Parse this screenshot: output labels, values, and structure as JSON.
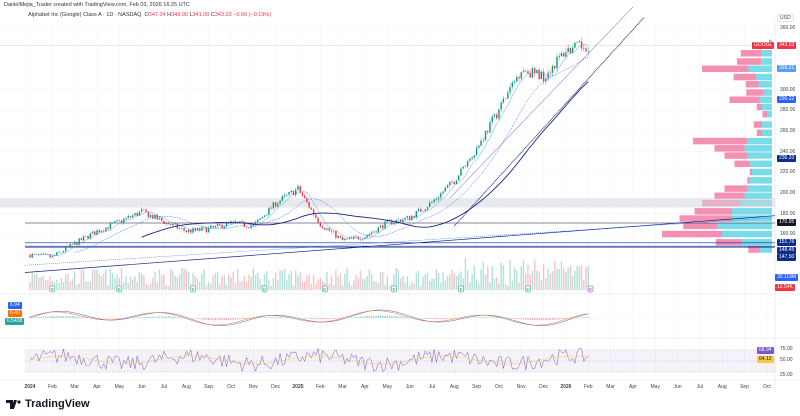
{
  "header": {
    "credit": "DanielMejia_Trader created with TradingView.com, Feb 03, 2026 16:25 UTC",
    "symbol": "Alphabet Inc (Google) Class A · 1D · NASDAQ",
    "o_label": "O",
    "o": "347.34",
    "h_label": "H",
    "h": "349.00",
    "l_label": "L",
    "l": "341.00",
    "c_label": "C",
    "c": "343.03",
    "change": "−0.66 (−0.19%)"
  },
  "currency": "USD",
  "brand": "TradingView",
  "colors": {
    "up": "#089981",
    "down": "#f23645",
    "ma": "#2962ff",
    "profile_up": "#4dd0e1",
    "profile_down": "#f06292"
  },
  "price_axis": [
    "360.00",
    "300.00",
    "280.00",
    "260.00",
    "240.00",
    "220.00",
    "200.00",
    "180.00",
    "160.00"
  ],
  "price_axis_values": [
    360,
    300,
    280,
    260,
    240,
    220,
    200,
    180,
    160
  ],
  "tags": [
    {
      "text": "GOOGL",
      "value": 343.03,
      "color": "#f23645",
      "pane": "price",
      "left": true
    },
    {
      "text": "343.03",
      "value": 343.03,
      "color": "#f23645",
      "pane": "price"
    },
    {
      "text": "320.21",
      "value": 320.21,
      "color": "#5b9cf6",
      "pane": "price"
    },
    {
      "text": "290.22",
      "value": 290.22,
      "color": "#2962ff",
      "pane": "price"
    },
    {
      "text": "236.33",
      "value": 236.33,
      "color": "#0d2d8c",
      "pane": "price"
    },
    {
      "text": "170.95",
      "value": 170.95,
      "color": "#131722",
      "pane": "price"
    },
    {
      "text": "151.76",
      "value": 151.76,
      "color": "#0d2d8c",
      "pane": "price"
    },
    {
      "text": "148.45",
      "value": 148.45,
      "color": "#0d2d8c",
      "pane": "price"
    },
    {
      "text": "147.50",
      "value": 147.5,
      "color": "#0d2d8c",
      "pane": "price"
    }
  ],
  "volume": {
    "vol_label": "30.119M",
    "ma_label": "12.54K"
  },
  "macd": {
    "macd": "6.94",
    "signal": "6.40",
    "hist": "0.5438"
  },
  "rsi": {
    "axis": [
      "75.00",
      "50.00",
      "25.00"
    ],
    "rsi": "68.94",
    "ma": "64.12"
  },
  "months": [
    "2024",
    "Feb",
    "Mar",
    "Apr",
    "May",
    "Jun",
    "Jul",
    "Aug",
    "Sep",
    "Oct",
    "Nov",
    "Dec",
    "2025",
    "Feb",
    "Mar",
    "Apr",
    "May",
    "Jun",
    "Jul",
    "Aug",
    "Sep",
    "Oct",
    "Nov",
    "Dec",
    "2026",
    "Feb",
    "Mar",
    "Apr",
    "May",
    "Jun",
    "Jul",
    "Aug",
    "Sep",
    "Oct"
  ],
  "earnings_marker": "E",
  "chart_data": {
    "type": "candlestick",
    "title": "Alphabet Inc (Google) Class A · 1D · NASDAQ",
    "ylim": [
      120,
      370
    ],
    "monthly_closes": {
      "x_month_index": [
        0,
        1,
        2,
        3,
        4,
        5,
        6,
        7,
        8,
        9,
        10,
        11,
        12,
        13,
        14,
        15,
        16,
        17,
        18,
        19,
        20,
        21,
        22,
        23,
        24,
        25
      ],
      "price": [
        140,
        138,
        151,
        163,
        172,
        182,
        172,
        163,
        165,
        171,
        168,
        190,
        204,
        170,
        154,
        158,
        171,
        176,
        191,
        212,
        243,
        281,
        320,
        313,
        338,
        343
      ]
    },
    "horizontal_levels": [
      170.95,
      151.76,
      148.45,
      147.5
    ],
    "earnings_month_index": [
      1,
      4,
      7.3,
      10.5,
      13.2,
      16.3,
      19.3,
      22.3,
      25.1
    ],
    "volume_profile": [
      [
        345,
        2,
        3
      ],
      [
        335,
        27,
        22
      ],
      [
        327,
        32,
        22
      ],
      [
        320,
        62,
        47
      ],
      [
        312,
        30,
        32
      ],
      [
        305,
        17,
        27
      ],
      [
        297,
        23,
        17
      ],
      [
        290,
        40,
        25
      ],
      [
        283,
        7,
        20
      ],
      [
        276,
        6,
        10
      ],
      [
        266,
        11,
        20
      ],
      [
        258,
        7,
        20
      ],
      [
        250,
        72,
        50
      ],
      [
        243,
        40,
        55
      ],
      [
        236,
        30,
        50
      ],
      [
        228,
        20,
        45
      ],
      [
        220,
        3,
        40
      ],
      [
        212,
        3,
        45
      ],
      [
        204,
        30,
        50
      ],
      [
        197,
        40,
        55
      ],
      [
        190,
        50,
        65
      ],
      [
        182,
        50,
        80
      ],
      [
        175,
        70,
        80
      ],
      [
        168,
        45,
        110
      ],
      [
        160,
        80,
        100
      ],
      [
        152,
        35,
        60
      ],
      [
        145,
        15,
        25
      ]
    ]
  }
}
